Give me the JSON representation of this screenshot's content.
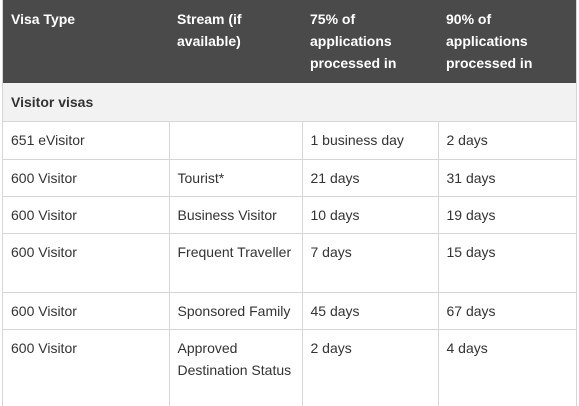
{
  "table": {
    "headers": [
      "Visa Type",
      "Stream (if available)",
      "75% of applications processed in",
      "90% of applications processed in"
    ],
    "section_title": "Visitor visas",
    "rows": [
      [
        "651 eVisitor",
        "",
        "1 business day",
        "2 days"
      ],
      [
        "600 Visitor",
        "Tourist*",
        "21 days",
        "31 days"
      ],
      [
        "600 Visitor",
        "Business Visitor",
        "10 days",
        "19 days"
      ],
      [
        "600 Visitor",
        "Frequent Traveller",
        "7 days",
        "15 days"
      ],
      [
        "600 Visitor",
        "Sponsored Family",
        "45 days",
        "67 days"
      ],
      [
        "600 Visitor",
        "Approved Destination Status",
        "2 days",
        "4 days"
      ]
    ]
  },
  "colors": {
    "header_bg": "#4a4a4a",
    "header_text": "#ffffff",
    "section_bg": "#f2f2f2",
    "border": "#d6d6d6",
    "body_text": "#333333"
  }
}
